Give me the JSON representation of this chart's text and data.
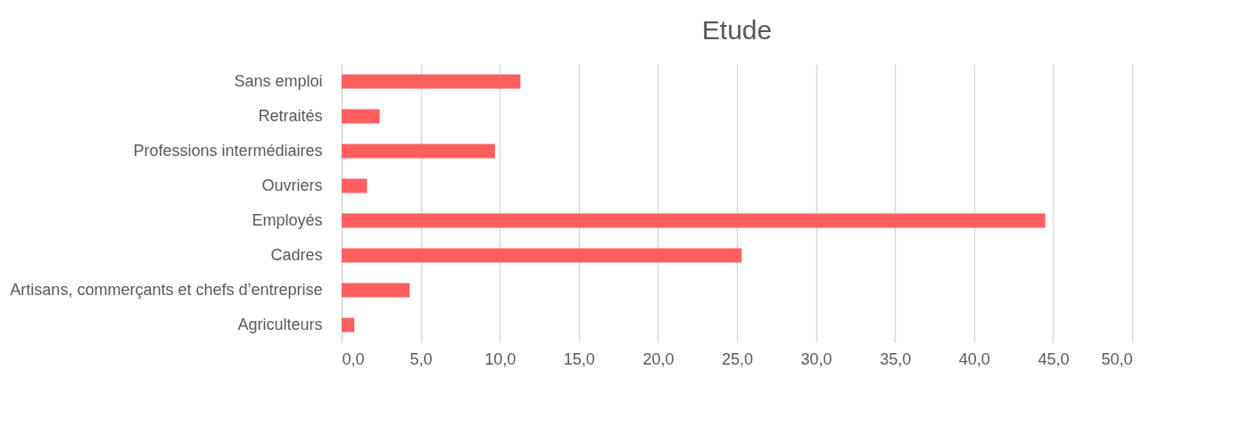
{
  "chart_data": {
    "type": "bar",
    "title": "Etude",
    "orientation": "horizontal",
    "categories": [
      "Sans emploi",
      "Retraités",
      "Professions intermédiaires",
      "Ouvriers",
      "Employés",
      "Cadres",
      "Artisans, commerçants et chefs d’entreprise",
      "Agriculteurs"
    ],
    "values": [
      11.3,
      2.4,
      9.7,
      1.6,
      44.5,
      25.3,
      4.3,
      0.8
    ],
    "color": "#ff5f5f",
    "xlim": [
      0,
      50
    ],
    "xticks": [
      {
        "value": 0,
        "label": "0,0"
      },
      {
        "value": 5,
        "label": "5,0"
      },
      {
        "value": 10,
        "label": "10,0"
      },
      {
        "value": 15,
        "label": "15,0"
      },
      {
        "value": 20,
        "label": "20,0"
      },
      {
        "value": 25,
        "label": "25,0"
      },
      {
        "value": 30,
        "label": "30,0"
      },
      {
        "value": 35,
        "label": "35,0"
      },
      {
        "value": 40,
        "label": "40,0"
      },
      {
        "value": 45,
        "label": "45,0"
      },
      {
        "value": 50,
        "label": "50,0"
      }
    ],
    "grid": "x"
  }
}
